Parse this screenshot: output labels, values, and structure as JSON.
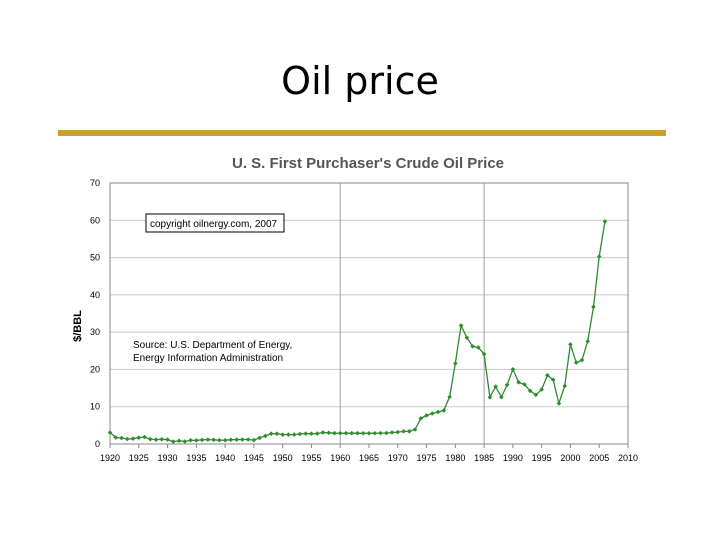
{
  "slide": {
    "title": "Oil price"
  },
  "colors": {
    "accent_rule": "#c9a227",
    "series": "#2e8b2e",
    "grid": "#c8c8c8",
    "frame": "#888888"
  },
  "chart_data": {
    "type": "line",
    "title": "U. S. First Purchaser's Crude Oil Price",
    "xlabel": "",
    "ylabel": "$/BBL",
    "xlim": [
      1920,
      2010
    ],
    "ylim": [
      0,
      70
    ],
    "x_ticks": [
      "1920",
      "1925",
      "1930",
      "1935",
      "1940",
      "1945",
      "1950",
      "1955",
      "1960",
      "1965",
      "1970",
      "1975",
      "1980",
      "1985",
      "1990",
      "1995",
      "2000",
      "2005",
      "2010"
    ],
    "y_ticks": [
      "0",
      "10",
      "20",
      "30",
      "40",
      "50",
      "60",
      "70"
    ],
    "grid": true,
    "annotations": {
      "copyright": "copyright oilnergy.com, 2007",
      "source_line1": "Source: U.S. Department of Energy,",
      "source_line2": "Energy Information Administration"
    },
    "series": [
      {
        "name": "",
        "x": [
          1920,
          1921,
          1922,
          1923,
          1924,
          1925,
          1926,
          1927,
          1928,
          1929,
          1930,
          1931,
          1932,
          1933,
          1934,
          1935,
          1936,
          1937,
          1938,
          1939,
          1940,
          1941,
          1942,
          1943,
          1944,
          1945,
          1946,
          1947,
          1948,
          1949,
          1950,
          1951,
          1952,
          1953,
          1954,
          1955,
          1956,
          1957,
          1958,
          1959,
          1960,
          1961,
          1962,
          1963,
          1964,
          1965,
          1966,
          1967,
          1968,
          1969,
          1970,
          1971,
          1972,
          1973,
          1974,
          1975,
          1976,
          1977,
          1978,
          1979,
          1980,
          1981,
          1982,
          1983,
          1984,
          1985,
          1986,
          1987,
          1988,
          1989,
          1990,
          1991,
          1992,
          1993,
          1994,
          1995,
          1996,
          1997,
          1998,
          1999,
          2000,
          2001,
          2002,
          2003,
          2004,
          2005,
          2006
        ],
        "y": [
          3.07,
          1.73,
          1.61,
          1.34,
          1.43,
          1.68,
          1.88,
          1.3,
          1.17,
          1.27,
          1.19,
          0.65,
          0.87,
          0.67,
          1.0,
          0.97,
          1.09,
          1.18,
          1.13,
          1.02,
          1.02,
          1.14,
          1.19,
          1.2,
          1.21,
          1.05,
          1.63,
          2.16,
          2.77,
          2.77,
          2.51,
          2.53,
          2.53,
          2.68,
          2.78,
          2.77,
          2.79,
          3.09,
          3.01,
          2.9,
          2.88,
          2.89,
          2.9,
          2.89,
          2.88,
          2.86,
          2.88,
          2.92,
          2.94,
          3.09,
          3.18,
          3.39,
          3.39,
          3.89,
          6.87,
          7.67,
          8.19,
          8.57,
          9.0,
          12.64,
          21.59,
          31.77,
          28.52,
          26.19,
          25.88,
          24.09,
          12.51,
          15.4,
          12.58,
          15.86,
          20.03,
          16.54,
          15.99,
          14.25,
          13.19,
          14.62,
          18.46,
          17.23,
          10.87,
          15.56,
          26.72,
          21.84,
          22.51,
          27.56,
          36.77,
          50.28,
          59.69
        ]
      }
    ]
  }
}
